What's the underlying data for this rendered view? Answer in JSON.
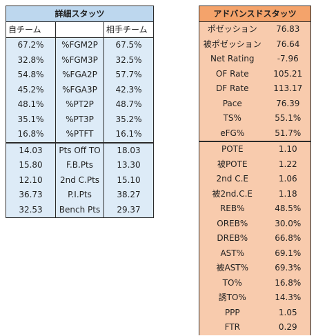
{
  "detail": {
    "title": "詳細スタッツ",
    "col_own": "自チーム",
    "col_mid": "",
    "col_opp": "相手チーム",
    "rows": [
      {
        "own": "67.2%",
        "label": "%FGM2P",
        "opp": "67.5%"
      },
      {
        "own": "32.8%",
        "label": "%FGM3P",
        "opp": "32.5%"
      },
      {
        "own": "54.8%",
        "label": "%FGA2P",
        "opp": "57.7%"
      },
      {
        "own": "45.2%",
        "label": "%FGA3P",
        "opp": "42.3%"
      },
      {
        "own": "48.1%",
        "label": "%PT2P",
        "opp": "48.7%"
      },
      {
        "own": "35.1%",
        "label": "%PT3P",
        "opp": "35.2%"
      },
      {
        "own": "16.8%",
        "label": "%PTFT",
        "opp": "16.1%"
      },
      {
        "own": "14.03",
        "label": "Pts Off TO",
        "opp": "18.03"
      },
      {
        "own": "15.80",
        "label": "F.B.Pts",
        "opp": "13.30"
      },
      {
        "own": "12.10",
        "label": "2nd C.Pts",
        "opp": "15.10"
      },
      {
        "own": "36.73",
        "label": "P.I.Pts",
        "opp": "38.27"
      },
      {
        "own": "32.53",
        "label": "Bench Pts",
        "opp": "29.37"
      }
    ]
  },
  "advanced": {
    "title": "アドバンスドスタッツ",
    "rows": [
      {
        "label": "ポゼッション",
        "value": "76.83"
      },
      {
        "label": "被ポゼッション",
        "value": "76.64"
      },
      {
        "label": "Net Rating",
        "value": "-7.96"
      },
      {
        "label": "OF Rate",
        "value": "105.21"
      },
      {
        "label": "DF Rate",
        "value": "113.17"
      },
      {
        "label": "Pace",
        "value": "76.39"
      },
      {
        "label": "TS%",
        "value": "55.1%"
      },
      {
        "label": "eFG%",
        "value": "51.7%"
      },
      {
        "label": "POTE",
        "value": "1.10"
      },
      {
        "label": "被POTE",
        "value": "1.22"
      },
      {
        "label": "2nd C.E",
        "value": "1.06"
      },
      {
        "label": "被2nd.C.E",
        "value": "1.18"
      },
      {
        "label": "REB%",
        "value": "48.5%"
      },
      {
        "label": "OREB%",
        "value": "30.0%"
      },
      {
        "label": "DREB%",
        "value": "66.8%"
      },
      {
        "label": "AST%",
        "value": "69.1%"
      },
      {
        "label": "被AST%",
        "value": "69.3%"
      },
      {
        "label": "TO%",
        "value": "16.8%"
      },
      {
        "label": "誘TO%",
        "value": "14.3%"
      },
      {
        "label": "PPP",
        "value": "1.05"
      },
      {
        "label": "FTR",
        "value": "0.29"
      }
    ]
  }
}
